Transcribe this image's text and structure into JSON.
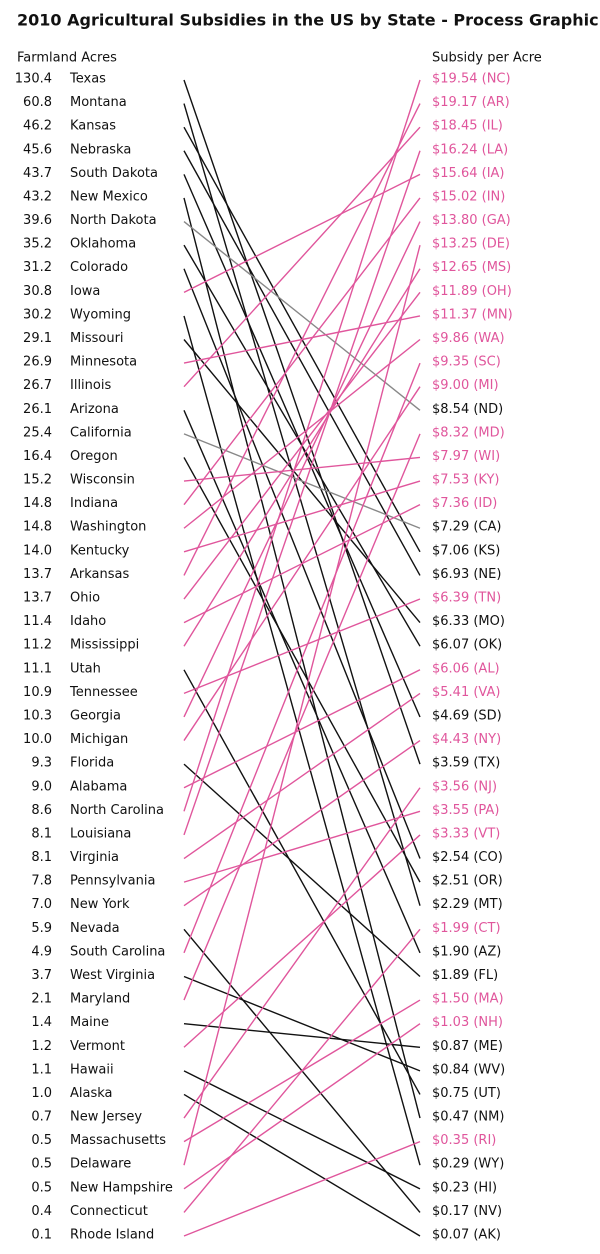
{
  "chart_data": {
    "type": "slope",
    "title": "2010 Agricultural Subsidies in the US by State - Process Graphic",
    "left_label": "Farmland Acres",
    "right_label": "Subsidy per Acre",
    "states": [
      "Texas",
      "Montana",
      "Kansas",
      "Nebraska",
      "South Dakota",
      "New Mexico",
      "North Dakota",
      "Oklahoma",
      "Colorado",
      "Iowa",
      "Wyoming",
      "Missouri",
      "Minnesota",
      "Illinois",
      "Arizona",
      "California",
      "Oregon",
      "Wisconsin",
      "Indiana",
      "Washington",
      "Kentucky",
      "Arkansas",
      "Ohio",
      "Idaho",
      "Mississippi",
      "Utah",
      "Tennessee",
      "Georgia",
      "Michigan",
      "Florida",
      "Alabama",
      "North Carolina",
      "Louisiana",
      "Virginia",
      "Pennsylvania",
      "New York",
      "Nevada",
      "South Carolina",
      "West Virginia",
      "Maryland",
      "Maine",
      "Vermont",
      "Hawaii",
      "Alaska",
      "New Jersey",
      "Massachusetts",
      "Delaware",
      "New Hampshire",
      "Connecticut",
      "Rhode Island"
    ],
    "acres": [
      130.4,
      60.8,
      46.2,
      45.6,
      43.7,
      43.2,
      39.6,
      35.2,
      31.2,
      30.8,
      30.2,
      29.1,
      26.9,
      26.7,
      26.1,
      25.4,
      16.4,
      15.2,
      14.8,
      14.8,
      14.0,
      13.7,
      13.7,
      11.4,
      11.2,
      11.1,
      10.9,
      10.3,
      10.0,
      9.3,
      9.0,
      8.6,
      8.1,
      8.1,
      7.8,
      7.0,
      5.9,
      4.9,
      3.7,
      2.1,
      1.4,
      1.2,
      1.1,
      1.0,
      0.7,
      0.5,
      0.5,
      0.5,
      0.4,
      0.1
    ],
    "acres_labels": [
      "130.4",
      "60.8",
      "46.2",
      "45.6",
      "43.7",
      "43.2",
      "39.6",
      "35.2",
      "31.2",
      "30.8",
      "30.2",
      "29.1",
      "26.9",
      "26.7",
      "26.1",
      "25.4",
      "16.4",
      "15.2",
      "14.8",
      "14.8",
      "14.0",
      "13.7",
      "13.7",
      "11.4",
      "11.2",
      "11.1",
      "10.9",
      "10.3",
      "10.0",
      "9.3",
      "9.0",
      "8.6",
      "8.1",
      "8.1",
      "7.8",
      "7.0",
      "5.9",
      "4.9",
      "3.7",
      "2.1",
      "1.4",
      "1.2",
      "1.1",
      "1.0",
      "0.7",
      "0.5",
      "0.5",
      "0.5",
      "0.4",
      "0.1"
    ],
    "subsidies": [
      19.54,
      19.17,
      18.45,
      16.24,
      15.64,
      15.02,
      13.8,
      13.25,
      12.65,
      11.89,
      11.37,
      9.86,
      9.35,
      9.0,
      8.54,
      8.32,
      7.97,
      7.53,
      7.36,
      7.29,
      7.06,
      6.93,
      6.39,
      6.33,
      6.07,
      6.06,
      5.41,
      4.69,
      4.43,
      3.59,
      3.56,
      3.55,
      3.33,
      2.54,
      2.51,
      2.29,
      1.99,
      1.9,
      1.89,
      1.5,
      1.03,
      0.87,
      0.84,
      0.75,
      0.47,
      0.35,
      0.29,
      0.23,
      0.17,
      0.07
    ],
    "subsidy_labels": [
      "$19.54 (NC)",
      "$19.17 (AR)",
      "$18.45 (IL)",
      "$16.24 (LA)",
      "$15.64 (IA)",
      "$15.02 (IN)",
      "$13.80 (GA)",
      "$13.25 (DE)",
      "$12.65 (MS)",
      "$11.89 (OH)",
      "$11.37 (MN)",
      "$9.86 (WA)",
      "$9.35 (SC)",
      "$9.00 (MI)",
      "$8.54 (ND)",
      "$8.32 (MD)",
      "$7.97 (WI)",
      "$7.53 (KY)",
      "$7.36 (ID)",
      "$7.29 (CA)",
      "$7.06 (KS)",
      "$6.93 (NE)",
      "$6.39 (TN)",
      "$6.33 (MO)",
      "$6.07 (OK)",
      "$6.06 (AL)",
      "$5.41 (VA)",
      "$4.69 (SD)",
      "$4.43 (NY)",
      "$3.59 (TX)",
      "$3.56 (NJ)",
      "$3.55 (PA)",
      "$3.33 (VT)",
      "$2.54 (CO)",
      "$2.51 (OR)",
      "$2.29 (MT)",
      "$1.99 (CT)",
      "$1.90 (AZ)",
      "$1.89 (FL)",
      "$1.50 (MA)",
      "$1.03 (NH)",
      "$0.87 (ME)",
      "$0.84 (WV)",
      "$0.75 (UT)",
      "$0.47 (NM)",
      "$0.35 (RI)",
      "$0.29 (WY)",
      "$0.23 (HI)",
      "$0.17 (NV)",
      "$0.07 (AK)"
    ],
    "subsidy_label_colors": [
      "#e0569c",
      "#e0569c",
      "#e0569c",
      "#e0569c",
      "#e0569c",
      "#e0569c",
      "#e0569c",
      "#e0569c",
      "#e0569c",
      "#e0569c",
      "#e0569c",
      "#e0569c",
      "#e0569c",
      "#e0569c",
      "#111111",
      "#e0569c",
      "#e0569c",
      "#e0569c",
      "#e0569c",
      "#111111",
      "#111111",
      "#111111",
      "#e0569c",
      "#111111",
      "#111111",
      "#e0569c",
      "#e0569c",
      "#111111",
      "#e0569c",
      "#111111",
      "#e0569c",
      "#e0569c",
      "#e0569c",
      "#111111",
      "#111111",
      "#111111",
      "#e0569c",
      "#111111",
      "#111111",
      "#e0569c",
      "#e0569c",
      "#111111",
      "#111111",
      "#111111",
      "#111111",
      "#e0569c",
      "#111111",
      "#111111",
      "#111111",
      "#111111"
    ],
    "link_to": [
      29,
      35,
      20,
      21,
      27,
      44,
      14,
      24,
      33,
      4,
      46,
      23,
      10,
      2,
      37,
      19,
      34,
      16,
      5,
      11,
      17,
      1,
      9,
      18,
      8,
      43,
      22,
      6,
      13,
      38,
      25,
      0,
      3,
      26,
      31,
      28,
      48,
      12,
      42,
      15,
      41,
      32,
      47,
      49,
      30,
      39,
      7,
      40,
      36,
      45
    ],
    "line_colors": [
      "#111111",
      "#111111",
      "#111111",
      "#111111",
      "#111111",
      "#111111",
      "#888888",
      "#111111",
      "#111111",
      "#e0569c",
      "#111111",
      "#111111",
      "#e0569c",
      "#e0569c",
      "#111111",
      "#888888",
      "#111111",
      "#e0569c",
      "#e0569c",
      "#e0569c",
      "#e0569c",
      "#e0569c",
      "#e0569c",
      "#e0569c",
      "#e0569c",
      "#111111",
      "#e0569c",
      "#e0569c",
      "#e0569c",
      "#111111",
      "#e0569c",
      "#e0569c",
      "#e0569c",
      "#e0569c",
      "#e0569c",
      "#e0569c",
      "#111111",
      "#e0569c",
      "#111111",
      "#e0569c",
      "#111111",
      "#e0569c",
      "#111111",
      "#111111",
      "#e0569c",
      "#e0569c",
      "#e0569c",
      "#e0569c",
      "#e0569c",
      "#e0569c"
    ]
  }
}
